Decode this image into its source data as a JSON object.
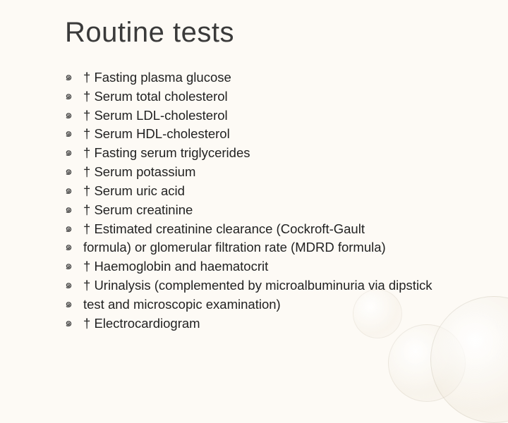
{
  "title": "Routine tests",
  "bullet_glyph": "๑",
  "dagger": "†",
  "items": [
    "Fasting plasma glucose",
    "Serum total cholesterol",
    "Serum LDL-cholesterol",
    "Serum HDL-cholesterol",
    "Fasting serum triglycerides",
    "Serum potassium",
    "Serum uric acid",
    "Serum creatinine",
    "Estimated creatinine clearance (Cockroft-Gault",
    "formula) or glomerular filtration rate (MDRD formula)",
    "Haemoglobin and haematocrit",
    "Urinalysis (complemented by microalbuminuria via dipstick",
    "test and microscopic examination)",
    "Electrocardiogram"
  ],
  "dagger_flags": [
    true,
    true,
    true,
    true,
    true,
    true,
    true,
    true,
    true,
    false,
    true,
    true,
    false,
    true
  ],
  "colors": {
    "background": "#fdfaf5",
    "title": "#3a3a3a",
    "text": "#222222",
    "bullet": "#444444"
  },
  "fontsizes": {
    "title_pt": 30,
    "body_pt": 14
  }
}
